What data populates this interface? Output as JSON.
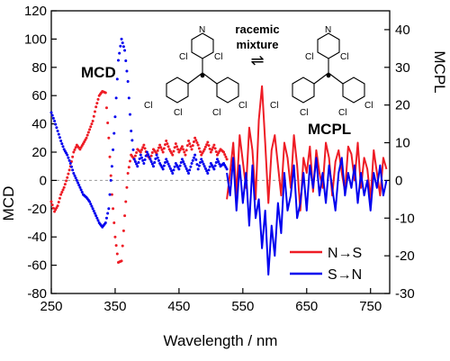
{
  "chart_data": {
    "type": "scatter",
    "xlabel": "Wavelength / nm",
    "ylabel_left": "MCD",
    "ylabel_right": "MCPL",
    "xlim": [
      250,
      780
    ],
    "ylim_left": [
      -80,
      120
    ],
    "ylim_right": [
      -30,
      45
    ],
    "x_ticks": [
      250,
      350,
      450,
      550,
      650,
      750
    ],
    "y_left_ticks": [
      -80,
      -60,
      -40,
      -20,
      0,
      20,
      40,
      60,
      80,
      100,
      120
    ],
    "y_right_ticks": [
      -30,
      -20,
      -10,
      0,
      10,
      20,
      30,
      40
    ],
    "grid": false,
    "zero_line": true,
    "labels": {
      "mcd": "MCD",
      "mcpl": "MCPL"
    },
    "annotation": {
      "line1": "racemic",
      "line2": "mixture",
      "arrow": "⇌"
    },
    "legend": {
      "placement": "bottom-right",
      "entries": [
        {
          "name": "N→S",
          "color": "#ee1c25"
        },
        {
          "name": "S→N",
          "color": "#0000ee"
        }
      ]
    },
    "series": [
      {
        "name": "N→S",
        "kind": "MCD",
        "axis": "left",
        "style": "dotted",
        "color": "#ee1c25",
        "x": [
          250,
          255,
          260,
          265,
          270,
          275,
          280,
          285,
          290,
          295,
          300,
          305,
          310,
          315,
          320,
          325,
          330,
          335,
          340,
          345,
          350,
          355,
          360,
          365,
          370,
          375,
          380,
          385,
          390,
          395,
          400,
          405,
          410,
          415,
          420,
          425,
          430,
          435,
          440,
          445,
          450,
          455,
          460,
          465,
          470,
          475,
          480,
          485,
          490,
          495,
          500,
          505,
          510,
          515,
          520,
          525
        ],
        "values": [
          -15,
          -22,
          -18,
          -10,
          -5,
          2,
          10,
          20,
          25,
          22,
          26,
          30,
          36,
          42,
          52,
          60,
          63,
          62,
          30,
          -10,
          -40,
          -58,
          -57,
          -25,
          5,
          18,
          15,
          22,
          20,
          25,
          18,
          15,
          22,
          19,
          25,
          20,
          28,
          22,
          18,
          26,
          20,
          24,
          18,
          28,
          22,
          30,
          25,
          18,
          22,
          27,
          20,
          25,
          18,
          22,
          20,
          15
        ]
      },
      {
        "name": "S→N",
        "kind": "MCD",
        "axis": "left",
        "style": "dotted",
        "color": "#0000ee",
        "x": [
          250,
          255,
          260,
          265,
          270,
          275,
          280,
          285,
          290,
          295,
          300,
          305,
          310,
          315,
          320,
          325,
          330,
          335,
          340,
          345,
          350,
          355,
          360,
          365,
          370,
          375,
          380,
          385,
          390,
          395,
          400,
          405,
          410,
          415,
          420,
          425,
          430,
          435,
          440,
          445,
          450,
          455,
          460,
          465,
          470,
          475,
          480,
          485,
          490,
          495,
          500,
          505,
          510,
          515,
          520,
          525
        ],
        "values": [
          48,
          42,
          35,
          28,
          22,
          18,
          12,
          5,
          0,
          -5,
          -10,
          -12,
          -15,
          -20,
          -25,
          -30,
          -33,
          -30,
          -20,
          10,
          45,
          85,
          100,
          92,
          70,
          35,
          15,
          10,
          18,
          12,
          20,
          15,
          10,
          18,
          12,
          8,
          15,
          10,
          5,
          12,
          8,
          15,
          10,
          5,
          12,
          18,
          8,
          15,
          10,
          5,
          12,
          8,
          15,
          10,
          12,
          8
        ]
      },
      {
        "name": "N→S",
        "kind": "MCPL",
        "axis": "right",
        "style": "solid",
        "color": "#ee1c25",
        "x": [
          525,
          530,
          535,
          540,
          545,
          550,
          555,
          560,
          565,
          570,
          575,
          580,
          585,
          590,
          595,
          600,
          605,
          610,
          615,
          620,
          625,
          630,
          635,
          640,
          645,
          650,
          655,
          660,
          665,
          670,
          675,
          680,
          685,
          690,
          695,
          700,
          705,
          710,
          715,
          720,
          725,
          730,
          735,
          740,
          745,
          750,
          755,
          760,
          765,
          770,
          775
        ],
        "values": [
          -5,
          2,
          10,
          -4,
          12,
          5,
          -2,
          14,
          8,
          -5,
          16,
          25,
          10,
          -6,
          8,
          12,
          4,
          -4,
          10,
          6,
          -2,
          12,
          4,
          -8,
          6,
          2,
          9,
          -3,
          8,
          2,
          -2,
          10,
          6,
          -4,
          5,
          8,
          2,
          -3,
          9,
          7,
          0,
          10,
          -2,
          6,
          3,
          -5,
          8,
          2,
          -4,
          6,
          3
        ]
      },
      {
        "name": "S→N",
        "kind": "MCPL",
        "axis": "right",
        "style": "solid",
        "color": "#0000ee",
        "x": [
          525,
          530,
          535,
          540,
          545,
          550,
          555,
          560,
          565,
          570,
          575,
          580,
          585,
          590,
          595,
          600,
          605,
          610,
          615,
          620,
          625,
          630,
          635,
          640,
          645,
          650,
          655,
          660,
          665,
          670,
          675,
          680,
          685,
          690,
          695,
          700,
          705,
          710,
          715,
          720,
          725,
          730,
          735,
          740,
          745,
          750,
          755,
          760,
          765,
          770,
          775
        ],
        "values": [
          2,
          -4,
          6,
          -8,
          4,
          -6,
          2,
          -12,
          4,
          -10,
          -5,
          -18,
          -8,
          -25,
          -12,
          -20,
          -6,
          -14,
          2,
          -8,
          -4,
          4,
          -10,
          -6,
          2,
          -8,
          4,
          -2,
          6,
          -4,
          2,
          -6,
          4,
          -2,
          -8,
          2,
          6,
          -4,
          2,
          -2,
          4,
          -6,
          2,
          -4,
          0,
          -8,
          2,
          -2,
          4,
          -4,
          0
        ]
      }
    ]
  },
  "structure_labels": {
    "n": "N",
    "cl": "Cl"
  }
}
